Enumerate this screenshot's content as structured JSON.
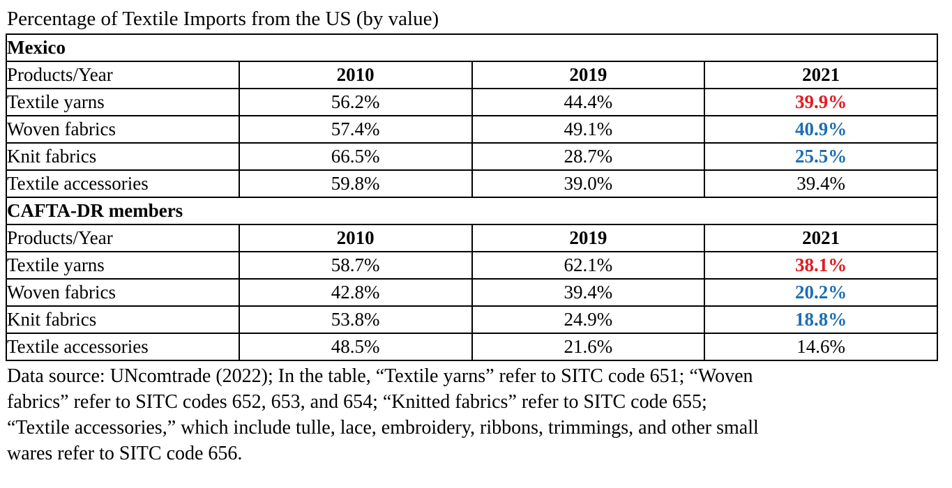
{
  "title": "Percentage of Textile Imports from the US (by value)",
  "colors": {
    "highlight_red": "#e11b22",
    "highlight_blue": "#1e6eb2",
    "text": "#000000",
    "border": "#000000",
    "background": "#ffffff"
  },
  "columns": [
    "Products/Year",
    "2010",
    "2019",
    "2021"
  ],
  "sections": [
    {
      "name": "Mexico",
      "rows": [
        {
          "product": "Textile yarns",
          "v2010": "56.2%",
          "v2019": "44.4%",
          "v2021": "39.9%",
          "highlight": "red"
        },
        {
          "product": "Woven fabrics",
          "v2010": "57.4%",
          "v2019": "49.1%",
          "v2021": "40.9%",
          "highlight": "blue"
        },
        {
          "product": "Knit fabrics",
          "v2010": "66.5%",
          "v2019": "28.7%",
          "v2021": "25.5%",
          "highlight": "blue"
        },
        {
          "product": "Textile accessories",
          "v2010": "59.8%",
          "v2019": "39.0%",
          "v2021": "39.4%",
          "highlight": "none"
        }
      ]
    },
    {
      "name": "CAFTA-DR members",
      "rows": [
        {
          "product": "Textile yarns",
          "v2010": "58.7%",
          "v2019": "62.1%",
          "v2021": "38.1%",
          "highlight": "red"
        },
        {
          "product": "Woven fabrics",
          "v2010": "42.8%",
          "v2019": "39.4%",
          "v2021": "20.2%",
          "highlight": "blue"
        },
        {
          "product": "Knit fabrics",
          "v2010": "53.8%",
          "v2019": "24.9%",
          "v2021": "18.8%",
          "highlight": "blue"
        },
        {
          "product": "Textile accessories",
          "v2010": "48.5%",
          "v2019": "21.6%",
          "v2021": "14.6%",
          "highlight": "none"
        }
      ]
    }
  ],
  "footnote_lines": [
    "Data source: UNcomtrade (2022); In the table, “Textile yarns” refer to SITC code 651; “Woven",
    "fabrics” refer to SITC codes 652, 653, and 654; “Knitted fabrics” refer to SITC code 655;",
    "“Textile accessories,” which include tulle, lace, embroidery, ribbons, trimmings, and other small",
    "wares refer to SITC code 656."
  ]
}
